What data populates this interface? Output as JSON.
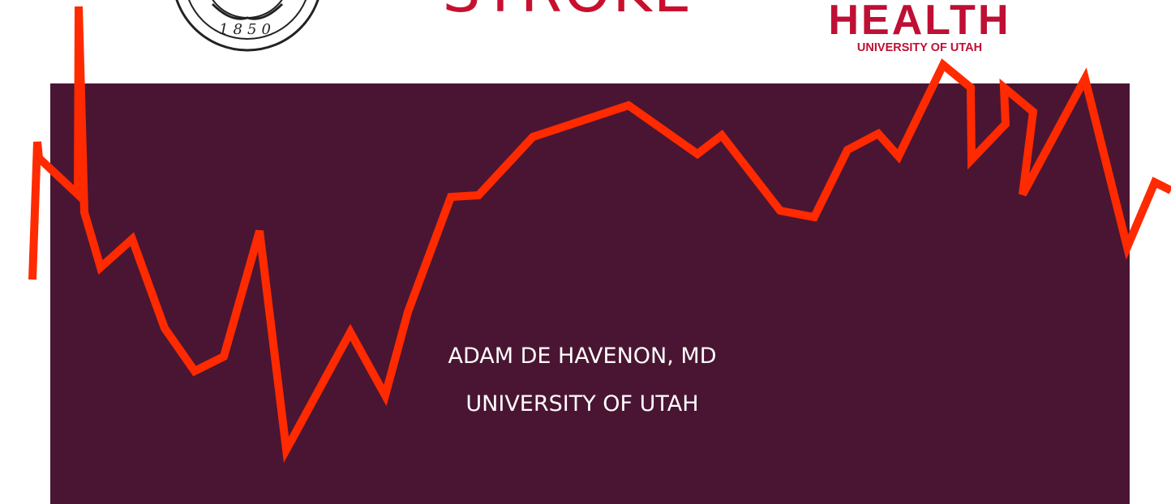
{
  "header": {
    "title": "STROKE",
    "seal_year": "1850",
    "logo_title": "HEALTH",
    "logo_subtitle": "UNIVERSITY OF UTAH"
  },
  "presenter": {
    "name": "ADAM DE HAVENON, MD",
    "affiliation": "UNIVERSITY OF UTAH"
  }
}
